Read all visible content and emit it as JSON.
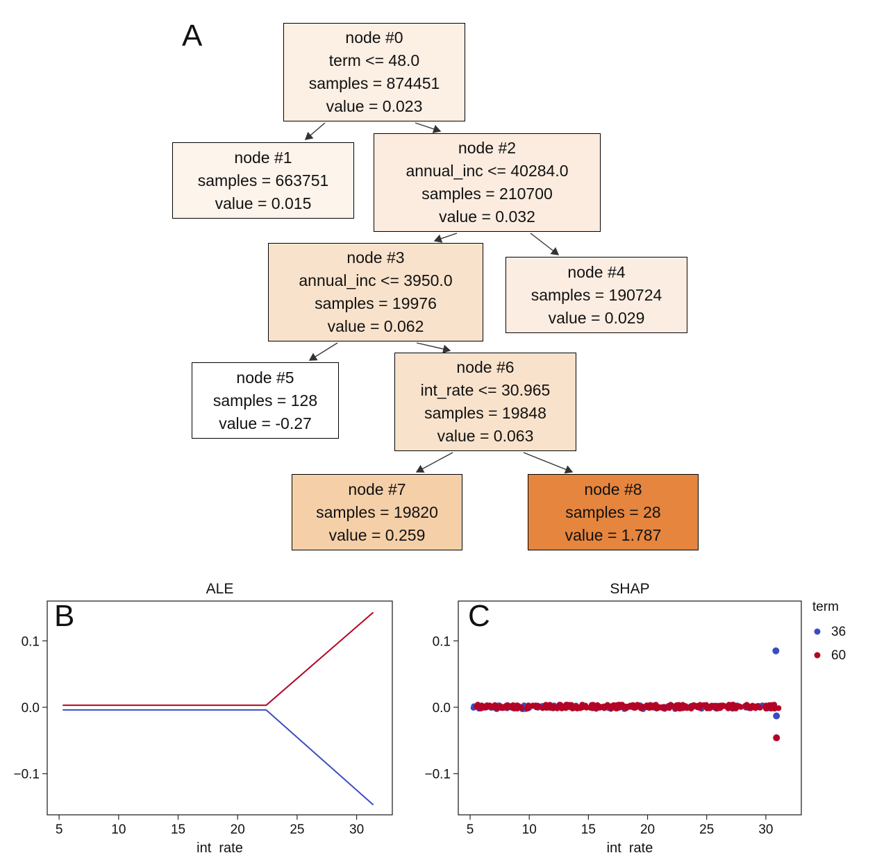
{
  "panels": {
    "a": "A",
    "b": "B",
    "c": "C"
  },
  "tree": {
    "nodes": [
      {
        "name": "node-0",
        "fill": "#fcefe4",
        "lines": [
          "node #0",
          "term <= 48.0",
          "samples = 874451",
          "value = 0.023"
        ]
      },
      {
        "name": "node-1",
        "fill": "#fdf4ec",
        "lines": [
          "node #1",
          "samples = 663751",
          "value = 0.015"
        ]
      },
      {
        "name": "node-2",
        "fill": "#fbecdf",
        "lines": [
          "node #2",
          "annual_inc <= 40284.0",
          "samples = 210700",
          "value = 0.032"
        ]
      },
      {
        "name": "node-3",
        "fill": "#f9e2cb",
        "lines": [
          "node #3",
          "annual_inc <= 3950.0",
          "samples = 19976",
          "value = 0.062"
        ]
      },
      {
        "name": "node-4",
        "fill": "#fcede2",
        "lines": [
          "node #4",
          "samples = 190724",
          "value = 0.029"
        ]
      },
      {
        "name": "node-5",
        "fill": "#ffffff",
        "lines": [
          "node #5",
          "samples = 128",
          "value = -0.27"
        ]
      },
      {
        "name": "node-6",
        "fill": "#f9e2cb",
        "lines": [
          "node #6",
          "int_rate <= 30.965",
          "samples = 19848",
          "value = 0.063"
        ]
      },
      {
        "name": "node-7",
        "fill": "#f5cfa8",
        "lines": [
          "node #7",
          "samples = 19820",
          "value = 0.259"
        ]
      },
      {
        "name": "node-8",
        "fill": "#e6853e",
        "lines": [
          "node #8",
          "samples = 28",
          "value = 1.787"
        ]
      }
    ],
    "edges": [
      [
        0,
        1
      ],
      [
        0,
        2
      ],
      [
        2,
        3
      ],
      [
        2,
        4
      ],
      [
        3,
        5
      ],
      [
        3,
        6
      ],
      [
        6,
        7
      ],
      [
        6,
        8
      ]
    ]
  },
  "chart_data": [
    {
      "id": "ale",
      "type": "line",
      "title": "ALE",
      "xlabel": "int_rate",
      "xlim": [
        4,
        33
      ],
      "ylim": [
        -0.162,
        0.16
      ],
      "xticks": [
        {
          "v": 5,
          "label": "5"
        },
        {
          "v": 10,
          "label": "10"
        },
        {
          "v": 15,
          "label": "15"
        },
        {
          "v": 20,
          "label": "20"
        },
        {
          "v": 25,
          "label": "25"
        },
        {
          "v": 30,
          "label": "30"
        }
      ],
      "yticks": [
        {
          "v": 0.1,
          "label": "0.1"
        },
        {
          "v": 0.0,
          "label": "0.0"
        },
        {
          "v": -0.1,
          "label": "−0.1"
        }
      ],
      "grid": false,
      "series": [
        {
          "name": "36",
          "color": "#3b4cc0",
          "x": [
            5.3,
            22.4,
            31.4
          ],
          "y": [
            -0.004,
            -0.004,
            -0.147
          ]
        },
        {
          "name": "60",
          "color": "#b40426",
          "x": [
            5.3,
            22.4,
            31.4
          ],
          "y": [
            0.003,
            0.003,
            0.143
          ]
        }
      ]
    },
    {
      "id": "shap",
      "type": "scatter",
      "title": "SHAP",
      "xlabel": "int_rate",
      "xlim": [
        4,
        33
      ],
      "ylim": [
        -0.162,
        0.16
      ],
      "xticks": [
        {
          "v": 5,
          "label": "5"
        },
        {
          "v": 10,
          "label": "10"
        },
        {
          "v": 15,
          "label": "15"
        },
        {
          "v": 20,
          "label": "20"
        },
        {
          "v": 25,
          "label": "25"
        },
        {
          "v": 30,
          "label": "30"
        }
      ],
      "yticks": [
        {
          "v": 0.1,
          "label": "0.1"
        },
        {
          "v": 0.0,
          "label": "0.0"
        },
        {
          "v": -0.1,
          "label": "−0.1"
        }
      ],
      "grid": false,
      "legend": {
        "title": "term",
        "position": "right",
        "entries": [
          {
            "label": "36",
            "color": "#3b4cc0"
          },
          {
            "label": "60",
            "color": "#b40426"
          }
        ]
      },
      "bands": [
        {
          "series": "36",
          "color": "#3b4cc0",
          "x_min": 5.1,
          "x_max": 31.3,
          "y_center": 0.0,
          "y_jitter": 0.003,
          "count": 90
        },
        {
          "series": "60",
          "color": "#b40426",
          "x_min": 5.55,
          "x_max": 31.3,
          "y_center": 0.001,
          "y_jitter": 0.003,
          "count": 300
        }
      ],
      "outliers": [
        {
          "series": "36",
          "color": "#3b4cc0",
          "x": 30.85,
          "y": 0.085
        },
        {
          "series": "36",
          "color": "#3b4cc0",
          "x": 30.9,
          "y": -0.013
        },
        {
          "series": "60",
          "color": "#b40426",
          "x": 30.9,
          "y": -0.046
        }
      ]
    }
  ]
}
